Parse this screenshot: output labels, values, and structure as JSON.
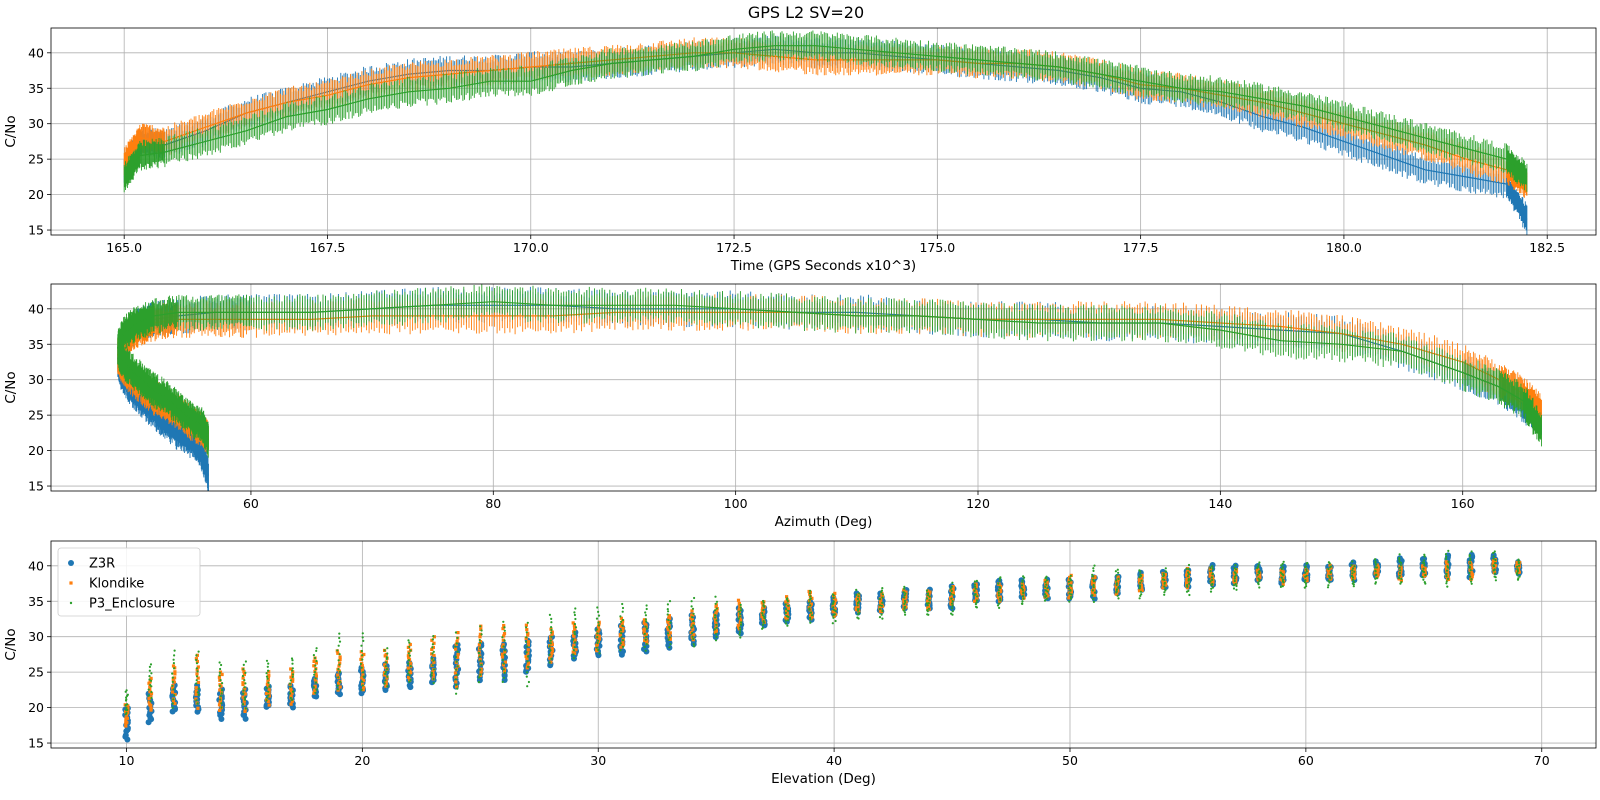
{
  "chart_data": [
    {
      "type": "line",
      "title": "GPS L2 SV=20",
      "xlabel": "Time (GPS Seconds x10^3)",
      "ylabel": "C/No",
      "xlim": [
        164.1,
        183.1
      ],
      "ylim": [
        14.3,
        43.5
      ],
      "xticks": [
        165.0,
        167.5,
        170.0,
        172.5,
        175.0,
        177.5,
        180.0,
        182.5
      ],
      "xtick_labels": [
        "165.0",
        "167.5",
        "170.0",
        "172.5",
        "175.0",
        "177.5",
        "180.0",
        "182.5"
      ],
      "yticks": [
        15,
        20,
        25,
        30,
        35,
        40
      ],
      "grid": true,
      "series": [
        {
          "name": "Z3R",
          "color": "#1f77b4",
          "x": [
            165.0,
            165.2,
            165.5,
            166.0,
            166.5,
            167.0,
            167.5,
            168.0,
            168.5,
            169.0,
            169.5,
            170.0,
            170.5,
            171.0,
            171.5,
            172.0,
            172.5,
            173.0,
            173.5,
            174.0,
            174.5,
            175.0,
            175.5,
            176.0,
            176.5,
            177.0,
            177.5,
            178.0,
            178.5,
            179.0,
            179.5,
            180.0,
            180.5,
            181.0,
            181.5,
            182.0,
            182.25
          ],
          "y": [
            23.5,
            27.5,
            27.0,
            29.0,
            31.5,
            33.0,
            34.5,
            36.0,
            37.0,
            37.5,
            37.5,
            38.0,
            38.0,
            38.5,
            39.0,
            39.5,
            40.0,
            40.5,
            40.0,
            40.0,
            39.5,
            39.0,
            38.5,
            38.0,
            37.5,
            36.5,
            35.0,
            34.5,
            33.0,
            31.0,
            29.5,
            27.5,
            25.5,
            23.5,
            22.5,
            21.5,
            16.5
          ]
        },
        {
          "name": "Klondike",
          "color": "#ff7f0e",
          "x": [
            165.0,
            165.2,
            165.5,
            166.0,
            166.5,
            167.0,
            167.5,
            168.0,
            168.5,
            169.0,
            169.5,
            170.0,
            170.5,
            171.0,
            171.5,
            172.0,
            172.5,
            173.0,
            173.5,
            174.0,
            174.5,
            175.0,
            175.5,
            176.0,
            176.5,
            177.0,
            177.5,
            178.0,
            178.5,
            179.0,
            179.5,
            180.0,
            180.5,
            181.0,
            181.5,
            182.0,
            182.25
          ],
          "y": [
            24.5,
            28.0,
            27.5,
            29.5,
            31.5,
            33.0,
            34.0,
            35.5,
            36.5,
            37.0,
            37.5,
            38.0,
            38.5,
            39.0,
            39.5,
            40.0,
            40.0,
            39.5,
            39.0,
            39.0,
            39.0,
            39.0,
            38.5,
            38.5,
            38.0,
            37.0,
            35.5,
            35.0,
            34.0,
            33.0,
            31.5,
            30.0,
            28.5,
            27.0,
            25.0,
            23.5,
            21.5
          ]
        },
        {
          "name": "P3_Enclosure",
          "color": "#2ca02c",
          "x": [
            165.0,
            165.2,
            165.5,
            166.0,
            166.5,
            167.0,
            167.5,
            168.0,
            168.5,
            169.0,
            169.5,
            170.0,
            170.5,
            171.0,
            171.5,
            172.0,
            172.5,
            173.0,
            173.5,
            174.0,
            174.5,
            175.0,
            175.5,
            176.0,
            176.5,
            177.0,
            177.5,
            178.0,
            178.5,
            179.0,
            179.5,
            180.0,
            180.5,
            181.0,
            181.5,
            182.0,
            182.25
          ],
          "y": [
            22.5,
            25.5,
            26.0,
            27.5,
            29.0,
            31.0,
            32.0,
            33.5,
            34.5,
            35.0,
            36.0,
            36.0,
            37.5,
            38.5,
            39.0,
            39.5,
            40.5,
            41.0,
            41.0,
            40.5,
            40.0,
            39.5,
            39.0,
            38.5,
            38.0,
            37.0,
            36.0,
            35.0,
            34.5,
            33.5,
            32.5,
            31.0,
            29.5,
            28.0,
            26.5,
            25.0,
            22.5
          ]
        }
      ]
    },
    {
      "type": "line",
      "xlabel": "Azimuth (Deg)",
      "ylabel": "C/No",
      "xlim": [
        43.5,
        171.0
      ],
      "ylim": [
        14.3,
        43.5
      ],
      "xticks": [
        60,
        80,
        100,
        120,
        140,
        160
      ],
      "xtick_labels": [
        "60",
        "80",
        "100",
        "120",
        "140",
        "160"
      ],
      "yticks": [
        15,
        20,
        25,
        30,
        35,
        40
      ],
      "grid": true,
      "series": [
        {
          "name": "Z3R",
          "color": "#1f77b4",
          "x": [
            56.5,
            56.0,
            55.0,
            54.0,
            53.0,
            52.0,
            51.0,
            50.0,
            49.3,
            49.0,
            49.5,
            50.5,
            52.0,
            54.0,
            57.0,
            60.0,
            65.0,
            70.0,
            75.0,
            80.0,
            85.0,
            90.0,
            95.0,
            100.0,
            105.0,
            110.0,
            115.0,
            120.0,
            125.0,
            130.0,
            135.0,
            140.0,
            145.0,
            150.0,
            155.0,
            160.0,
            163.0,
            165.0,
            166.5
          ],
          "y": [
            16.5,
            19.5,
            21.5,
            22.5,
            24.0,
            25.5,
            27.0,
            29.0,
            31.0,
            33.0,
            35.5,
            37.5,
            38.5,
            39.0,
            39.5,
            39.5,
            39.5,
            40.0,
            40.5,
            40.5,
            40.5,
            40.0,
            40.0,
            40.0,
            39.5,
            39.5,
            39.0,
            38.5,
            38.5,
            38.0,
            38.0,
            37.5,
            37.0,
            36.5,
            34.0,
            31.0,
            29.0,
            26.5,
            24.0
          ]
        },
        {
          "name": "Klondike",
          "color": "#ff7f0e",
          "x": [
            56.5,
            56.0,
            55.0,
            54.0,
            53.0,
            52.0,
            51.0,
            50.0,
            49.3,
            49.0,
            49.5,
            50.5,
            52.0,
            54.0,
            57.0,
            60.0,
            65.0,
            70.0,
            75.0,
            80.0,
            85.0,
            90.0,
            95.0,
            100.0,
            105.0,
            110.0,
            115.0,
            120.0,
            125.0,
            130.0,
            135.0,
            140.0,
            145.0,
            150.0,
            155.0,
            160.0,
            163.0,
            165.0,
            166.5
          ],
          "y": [
            21.5,
            23.0,
            24.0,
            25.5,
            26.5,
            27.5,
            29.0,
            30.5,
            32.0,
            33.5,
            35.5,
            37.0,
            38.0,
            38.5,
            38.5,
            38.5,
            38.5,
            39.0,
            39.0,
            39.0,
            39.0,
            39.5,
            39.5,
            39.5,
            39.5,
            39.0,
            39.0,
            38.5,
            38.5,
            38.5,
            38.5,
            38.0,
            37.5,
            36.5,
            35.0,
            32.5,
            30.0,
            28.0,
            25.5
          ]
        },
        {
          "name": "P3_Enclosure",
          "color": "#2ca02c",
          "x": [
            56.5,
            56.0,
            55.0,
            54.0,
            53.0,
            52.0,
            51.0,
            50.0,
            49.3,
            49.0,
            49.5,
            50.5,
            52.0,
            54.0,
            57.0,
            60.0,
            65.0,
            70.0,
            75.0,
            80.0,
            85.0,
            90.0,
            95.0,
            100.0,
            105.0,
            110.0,
            115.0,
            120.0,
            125.0,
            130.0,
            135.0,
            140.0,
            145.0,
            150.0,
            155.0,
            160.0,
            163.0,
            165.0,
            166.5
          ],
          "y": [
            21.5,
            23.5,
            24.5,
            26.0,
            27.5,
            28.5,
            30.0,
            31.5,
            33.0,
            34.5,
            36.5,
            38.0,
            39.0,
            39.5,
            39.5,
            39.5,
            39.5,
            40.0,
            40.5,
            41.0,
            40.5,
            40.5,
            40.5,
            40.0,
            39.5,
            39.0,
            39.0,
            38.5,
            38.0,
            38.0,
            38.0,
            37.0,
            35.5,
            35.0,
            34.0,
            31.0,
            29.0,
            27.0,
            23.0
          ]
        }
      ]
    },
    {
      "type": "scatter",
      "xlabel": "Elevation (Deg)",
      "ylabel": "C/No",
      "xlim": [
        6.8,
        72.3
      ],
      "ylim": [
        14.3,
        43.5
      ],
      "xticks": [
        10,
        20,
        30,
        40,
        50,
        60,
        70
      ],
      "xtick_labels": [
        "10",
        "20",
        "30",
        "40",
        "50",
        "60",
        "70"
      ],
      "yticks": [
        15,
        20,
        25,
        30,
        35,
        40
      ],
      "grid": true,
      "legend": "top-left",
      "elevations": [
        10,
        11,
        12,
        13,
        14,
        15,
        16,
        17,
        18,
        19,
        20,
        21,
        22,
        23,
        24,
        25,
        26,
        27,
        28,
        29,
        30,
        31,
        32,
        33,
        34,
        35,
        36,
        37,
        38,
        39,
        40,
        41,
        42,
        43,
        44,
        45,
        46,
        47,
        48,
        49,
        50,
        51,
        52,
        53,
        54,
        55,
        56,
        57,
        58,
        59,
        60,
        61,
        62,
        63,
        64,
        65,
        66,
        67,
        68,
        69
      ],
      "series": [
        {
          "name": "Z3R",
          "color": "#1f77b4",
          "marker": "circle",
          "y_min": [
            15.5,
            18.0,
            19.5,
            19.5,
            18.5,
            18.5,
            20.0,
            20.0,
            21.5,
            22.0,
            22.0,
            22.5,
            23.0,
            23.5,
            23.0,
            24.0,
            24.0,
            25.0,
            26.0,
            27.0,
            27.5,
            27.5,
            28.0,
            28.5,
            29.0,
            30.0,
            30.5,
            31.5,
            32.0,
            32.5,
            33.0,
            33.5,
            33.5,
            34.0,
            34.0,
            34.0,
            35.0,
            35.0,
            35.5,
            35.5,
            35.5,
            35.5,
            36.0,
            36.5,
            37.0,
            37.0,
            37.5,
            37.5,
            38.0,
            37.5,
            38.0,
            38.0,
            38.0,
            38.5,
            38.5,
            38.5,
            38.5,
            38.5,
            39.0,
            39.0
          ],
          "y_max": [
            20.0,
            22.0,
            23.0,
            23.0,
            22.5,
            22.5,
            23.0,
            23.0,
            24.0,
            25.0,
            25.5,
            26.0,
            26.5,
            27.0,
            29.0,
            29.0,
            29.0,
            29.5,
            30.0,
            30.5,
            31.0,
            31.5,
            32.0,
            32.5,
            33.0,
            33.5,
            34.0,
            34.0,
            34.5,
            35.0,
            35.5,
            36.0,
            36.0,
            36.5,
            36.5,
            37.0,
            37.5,
            38.0,
            38.0,
            38.0,
            38.0,
            38.5,
            38.5,
            39.0,
            39.0,
            39.5,
            40.0,
            40.0,
            40.0,
            40.0,
            40.0,
            40.0,
            40.5,
            40.5,
            41.0,
            41.0,
            41.5,
            41.5,
            41.5,
            40.5
          ]
        },
        {
          "name": "Klondike",
          "color": "#ff7f0e",
          "marker": "x",
          "y_min": [
            17.5,
            19.5,
            20.5,
            20.0,
            19.5,
            19.5,
            20.5,
            20.5,
            22.0,
            22.5,
            22.5,
            23.0,
            24.0,
            24.0,
            23.0,
            24.5,
            25.0,
            25.5,
            26.5,
            27.5,
            28.0,
            28.5,
            29.0,
            29.5,
            29.5,
            30.5,
            31.0,
            32.0,
            32.5,
            32.5,
            33.0,
            33.5,
            33.5,
            34.0,
            34.0,
            34.5,
            35.0,
            35.0,
            35.5,
            35.5,
            35.5,
            36.0,
            36.0,
            36.5,
            37.0,
            37.0,
            37.5,
            37.5,
            38.0,
            37.5,
            38.0,
            38.0,
            38.0,
            38.5,
            38.0,
            38.5,
            38.0,
            38.0,
            39.0,
            39.0
          ],
          "y_max": [
            20.5,
            24.0,
            26.0,
            27.5,
            25.0,
            25.5,
            25.0,
            25.5,
            27.0,
            28.0,
            28.0,
            28.0,
            29.0,
            30.0,
            30.5,
            31.5,
            31.5,
            31.5,
            31.0,
            32.0,
            32.0,
            32.5,
            32.5,
            33.0,
            33.5,
            34.5,
            35.0,
            35.0,
            35.5,
            36.5,
            36.0,
            36.0,
            36.0,
            36.5,
            36.5,
            37.0,
            37.5,
            37.5,
            37.5,
            38.0,
            38.5,
            38.5,
            38.5,
            38.5,
            39.0,
            39.5,
            39.5,
            39.5,
            39.5,
            39.5,
            39.5,
            40.0,
            40.0,
            40.0,
            40.0,
            40.0,
            40.5,
            40.5,
            41.0,
            40.5
          ]
        },
        {
          "name": "P3_Enclosure",
          "color": "#2ca02c",
          "marker": "dot",
          "y_min": [
            19.0,
            21.0,
            20.0,
            20.5,
            20.0,
            20.0,
            21.0,
            21.0,
            22.0,
            22.5,
            22.5,
            23.0,
            23.5,
            23.5,
            22.0,
            23.5,
            23.5,
            23.0,
            26.5,
            27.0,
            27.5,
            28.0,
            28.0,
            28.5,
            28.5,
            29.5,
            30.0,
            31.0,
            31.5,
            32.0,
            32.0,
            32.5,
            32.5,
            33.0,
            33.0,
            33.0,
            34.0,
            34.0,
            34.5,
            35.0,
            35.0,
            35.0,
            35.5,
            35.5,
            36.0,
            36.0,
            36.5,
            36.5,
            37.0,
            37.0,
            37.0,
            37.0,
            37.0,
            37.5,
            37.5,
            37.5,
            37.0,
            37.5,
            38.0,
            38.0
          ],
          "y_max": [
            22.5,
            26.0,
            28.0,
            28.0,
            26.5,
            26.5,
            26.5,
            27.0,
            28.5,
            30.5,
            30.5,
            28.5,
            29.5,
            30.0,
            30.5,
            31.5,
            32.0,
            32.0,
            33.0,
            34.0,
            34.0,
            34.5,
            34.5,
            35.0,
            35.5,
            35.5,
            34.5,
            35.0,
            35.5,
            36.5,
            36.0,
            36.5,
            37.0,
            37.0,
            36.5,
            37.5,
            38.0,
            38.5,
            38.5,
            38.5,
            38.5,
            40.0,
            39.5,
            39.5,
            39.5,
            40.0,
            40.0,
            40.0,
            40.5,
            40.5,
            40.5,
            40.5,
            40.5,
            41.0,
            41.5,
            41.5,
            42.0,
            42.0,
            42.0,
            41.0
          ]
        }
      ]
    }
  ]
}
